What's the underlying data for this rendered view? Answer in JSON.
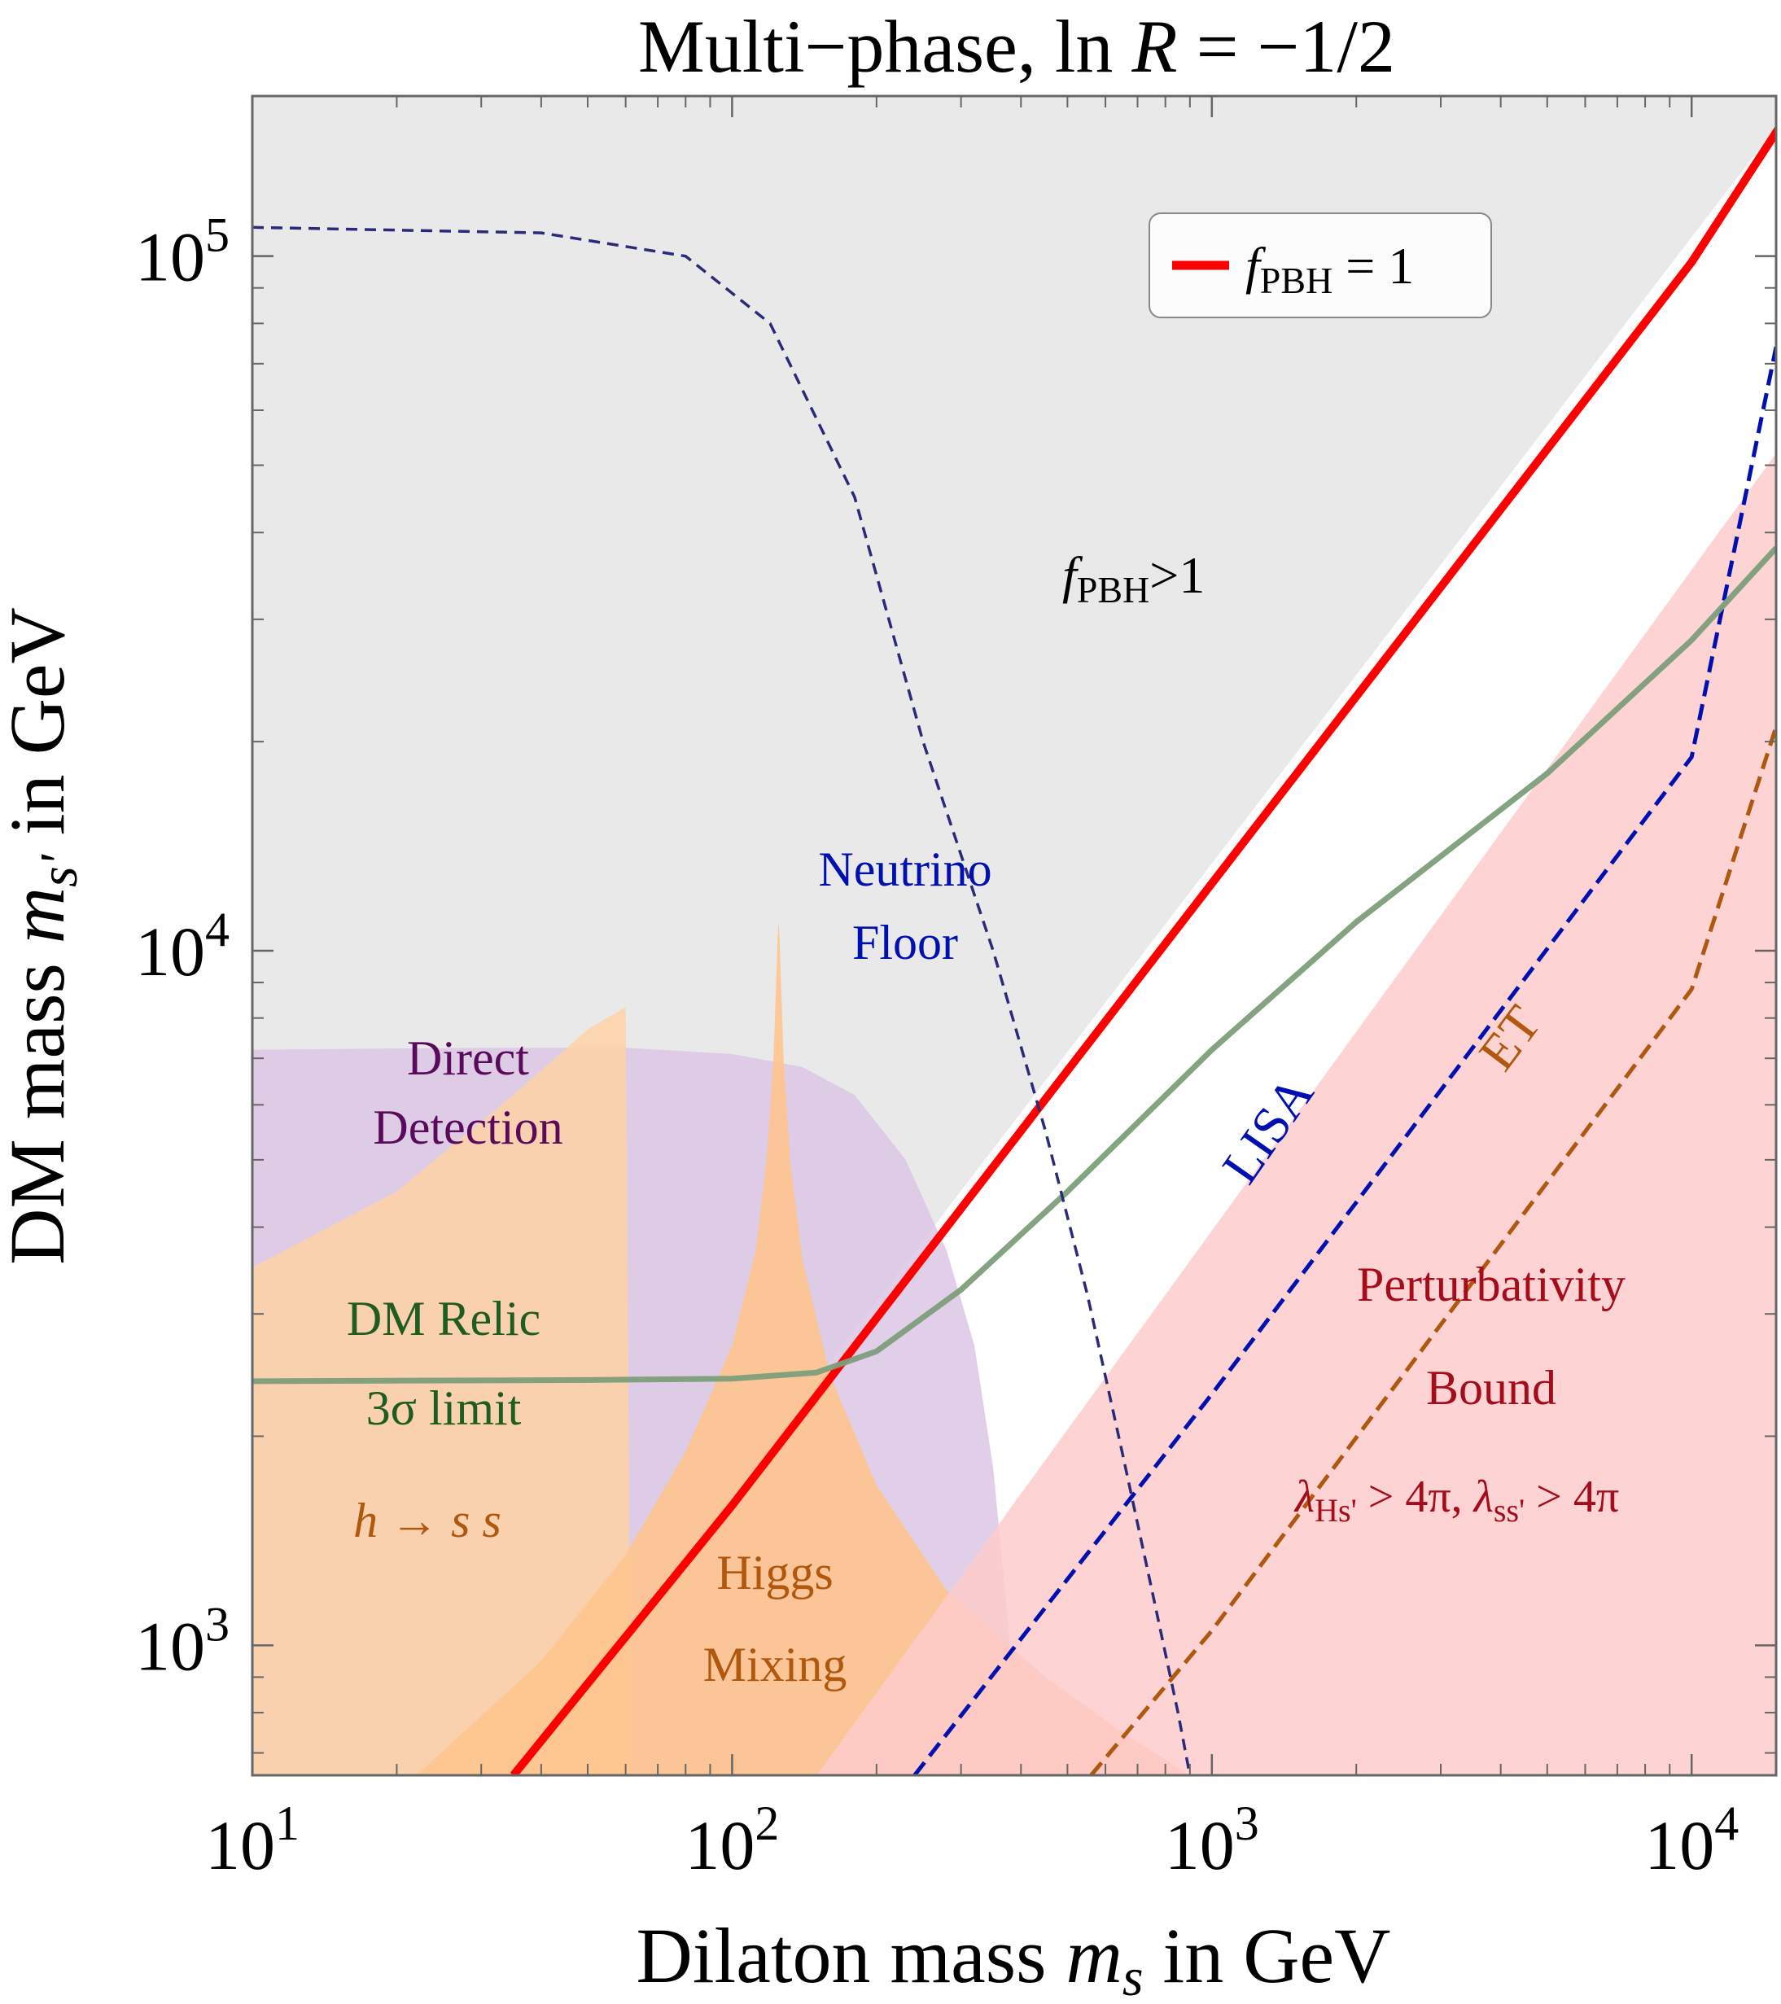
{
  "chart_data": {
    "type": "line",
    "title": "Multi−phase, ln R = −1/2",
    "title_parts": {
      "prefix": "Multi−phase, ln ",
      "var": "R",
      "suffix": " = −1/2"
    },
    "xlabel": "Dilaton mass m_s in GeV",
    "xlabel_parts": {
      "prefix": "Dilaton mass ",
      "var": "m",
      "sub": "s",
      "suffix": " in GeV"
    },
    "ylabel": "DM mass m_s' in GeV",
    "ylabel_parts": {
      "prefix": "DM mass ",
      "var": "m",
      "sub": "s'",
      "suffix": " in GeV"
    },
    "x_scale": "log",
    "y_scale": "log",
    "xlim": [
      10,
      15000
    ],
    "ylim": [
      650,
      170000
    ],
    "x_ticks": [
      {
        "value": 10,
        "base": "10",
        "exp": "1"
      },
      {
        "value": 100,
        "base": "10",
        "exp": "2"
      },
      {
        "value": 1000,
        "base": "10",
        "exp": "3"
      },
      {
        "value": 10000,
        "base": "10",
        "exp": "4"
      }
    ],
    "y_ticks": [
      {
        "value": 1000,
        "base": "10",
        "exp": "3"
      },
      {
        "value": 10000,
        "base": "10",
        "exp": "4"
      },
      {
        "value": 100000,
        "base": "10",
        "exp": "5"
      }
    ],
    "grid": false,
    "legend": {
      "placement": "top-right",
      "entries": [
        {
          "label_var": "f",
          "label_sub": "PBH",
          "label_suffix": " = 1",
          "color": "#ff0000"
        }
      ]
    },
    "regions": [
      {
        "name": "fPBH > 1 excluded",
        "color": "#e5e5e5",
        "points": [
          [
            10,
            650
          ],
          [
            10,
            170000
          ],
          [
            16800,
            170000
          ],
          [
            35,
            650
          ]
        ]
      },
      {
        "name": "Direct Detection",
        "color": "#dcc5e4",
        "points": [
          [
            10,
            650
          ],
          [
            10,
            7200
          ],
          [
            30,
            7250
          ],
          [
            60,
            7250
          ],
          [
            100,
            7100
          ],
          [
            140,
            6800
          ],
          [
            180,
            6200
          ],
          [
            230,
            5000
          ],
          [
            280,
            3700
          ],
          [
            320,
            2700
          ],
          [
            350,
            1800
          ],
          [
            375,
            1100
          ],
          [
            400,
            650
          ]
        ]
      },
      {
        "name": "h -> s s",
        "color": "#ffd2a6",
        "points": [
          [
            10,
            650
          ],
          [
            10,
            3500
          ],
          [
            20,
            4500
          ],
          [
            35,
            6200
          ],
          [
            50,
            7700
          ],
          [
            60,
            8300
          ],
          [
            61,
            1700
          ],
          [
            61,
            650
          ]
        ]
      },
      {
        "name": "Higgs Mixing",
        "color": "#fec48e",
        "points": [
          [
            22,
            650
          ],
          [
            40,
            950
          ],
          [
            60,
            1350
          ],
          [
            80,
            1900
          ],
          [
            100,
            2700
          ],
          [
            112,
            3700
          ],
          [
            118,
            5000
          ],
          [
            122,
            7000
          ],
          [
            124.5,
            10500
          ],
          [
            125,
            11000
          ],
          [
            125.5,
            10500
          ],
          [
            128,
            7000
          ],
          [
            132,
            5000
          ],
          [
            140,
            3600
          ],
          [
            160,
            2450
          ],
          [
            200,
            1700
          ],
          [
            280,
            1200
          ],
          [
            450,
            900
          ],
          [
            650,
            750
          ],
          [
            900,
            650
          ]
        ]
      },
      {
        "name": "Perturbativity Bound",
        "color": "#fdcbcb",
        "points": [
          [
            150,
            650
          ],
          [
            15000,
            52000
          ],
          [
            15000,
            650
          ]
        ]
      }
    ],
    "series": [
      {
        "name": "f_PBH = 1",
        "color": "#ff0000",
        "style": "solid",
        "x": [
          35,
          100,
          1000,
          10000,
          16800
        ],
        "y": [
          650,
          1590,
          12500,
          98000,
          170000
        ]
      },
      {
        "name": "LISA",
        "color": "#0010b0",
        "style": "dashed",
        "x": [
          240,
          1000,
          10000,
          15000
        ],
        "y": [
          650,
          2300,
          19000,
          74000
        ]
      },
      {
        "name": "ET",
        "color": "#b0580e",
        "style": "dashed",
        "x": [
          560,
          1000,
          10000,
          15000
        ],
        "y": [
          650,
          1050,
          8800,
          21000
        ]
      },
      {
        "name": "DM Relic 3σ limit",
        "color": "#7d9e7a",
        "style": "solid",
        "x": [
          10,
          50,
          100,
          150,
          200,
          300,
          500,
          1000,
          2000,
          5000,
          10000,
          15000
        ],
        "y": [
          2400,
          2410,
          2420,
          2470,
          2650,
          3250,
          4500,
          7200,
          11000,
          18000,
          28000,
          38000
        ]
      },
      {
        "name": "Neutrino Floor",
        "color": "#2a2a7a",
        "style": "dashed",
        "x": [
          10,
          40,
          80,
          120,
          180,
          250,
          350,
          450,
          550,
          650,
          750,
          850,
          900
        ],
        "y": [
          110000,
          108000,
          100000,
          80000,
          45000,
          20000,
          10000,
          5500,
          3200,
          1900,
          1200,
          800,
          650
        ]
      }
    ],
    "annotations": [
      {
        "id": "fpbh-gt-1",
        "var": "f",
        "sub": "PBH",
        "suffix": ">1",
        "color": "#000000"
      },
      {
        "id": "neutrino-floor",
        "lines": [
          "Neutrino",
          "Floor"
        ],
        "color": "#0010b0"
      },
      {
        "id": "direct-detection",
        "lines": [
          "Direct",
          "Detection"
        ],
        "color": "#5a0a5a"
      },
      {
        "id": "dm-relic",
        "lines": [
          "DM Relic",
          "3σ limit"
        ],
        "color": "#1f5c1f"
      },
      {
        "id": "h-ss",
        "text": "h → s s",
        "color": "#b0580e"
      },
      {
        "id": "higgs-mixing",
        "lines": [
          "Higgs",
          "Mixing"
        ],
        "color": "#b0580e"
      },
      {
        "id": "lisa",
        "text": "LISA",
        "color": "#0010b0"
      },
      {
        "id": "et",
        "text": "ET",
        "color": "#b0580e"
      },
      {
        "id": "perturbativity",
        "lines": [
          "Perturbativity",
          "Bound"
        ],
        "color": "#a50b18"
      },
      {
        "id": "lambda-bound",
        "parts": [
          "λ",
          "Hs'",
          " > 4π, ",
          "λ",
          "ss'",
          " > 4π"
        ],
        "color": "#a50b18"
      }
    ]
  }
}
